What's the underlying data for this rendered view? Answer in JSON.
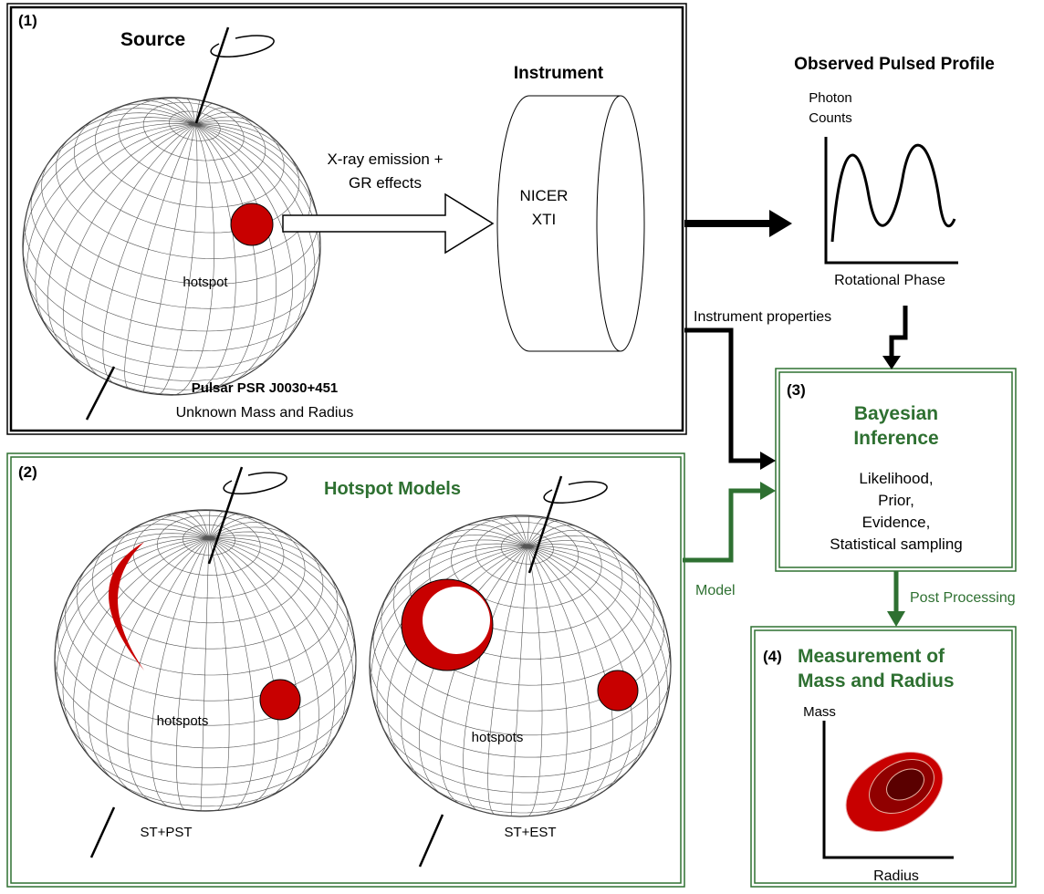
{
  "panel1": {
    "number": "(1)",
    "source_title": "Source",
    "instrument_title": "Instrument",
    "emission_label": [
      "X-ray  emission +",
      "GR effects"
    ],
    "detector_label": [
      "NICER",
      "XTI"
    ],
    "hotspot_label": "hotspot",
    "pulsar_name": "Pulsar PSR J0030+451",
    "pulsar_note": "Unknown Mass and Radius"
  },
  "profile": {
    "title": "Observed Pulsed Profile",
    "y_label": [
      "Photon",
      "Counts"
    ],
    "x_label": "Rotational Phase"
  },
  "instrument_link": "Instrument properties",
  "panel2": {
    "number": "(2)",
    "title": "Hotspot Models",
    "models": [
      {
        "hotspots_label": "hotspots",
        "name": "ST+PST"
      },
      {
        "hotspots_label": "hotspots",
        "name": "ST+EST"
      }
    ]
  },
  "model_link": "Model",
  "panel3": {
    "number": "(3)",
    "title": [
      "Bayesian",
      "Inference"
    ],
    "items": [
      "Likelihood,",
      "Prior,",
      "Evidence,",
      "Statistical sampling"
    ]
  },
  "post_link": "Post Processing",
  "panel4": {
    "number": "(4)",
    "title": [
      "Measurement of",
      "Mass and Radius"
    ],
    "y_label": "Mass",
    "x_label": "Radius"
  }
}
